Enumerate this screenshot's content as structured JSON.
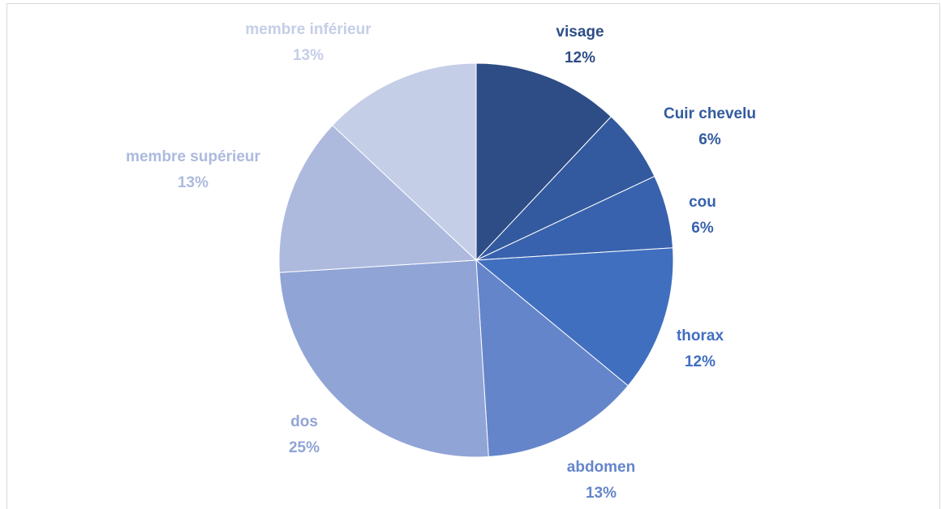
{
  "chart_data": {
    "type": "pie",
    "categories": [
      "visage",
      "Cuir chevelu",
      "cou",
      "thorax",
      "abdomen",
      "dos",
      "membre supérieur",
      "membre inférieur"
    ],
    "values": [
      12,
      6,
      6,
      12,
      13,
      25,
      13,
      13
    ],
    "value_labels": [
      "12%",
      "6%",
      "6%",
      "12%",
      "13%",
      "25%",
      "13%",
      "13%"
    ],
    "colors": [
      "#2e4d87",
      "#335a9f",
      "#3862ad",
      "#416fc0",
      "#6585cb",
      "#90a4d6",
      "#adbade",
      "#c5cee7"
    ]
  }
}
